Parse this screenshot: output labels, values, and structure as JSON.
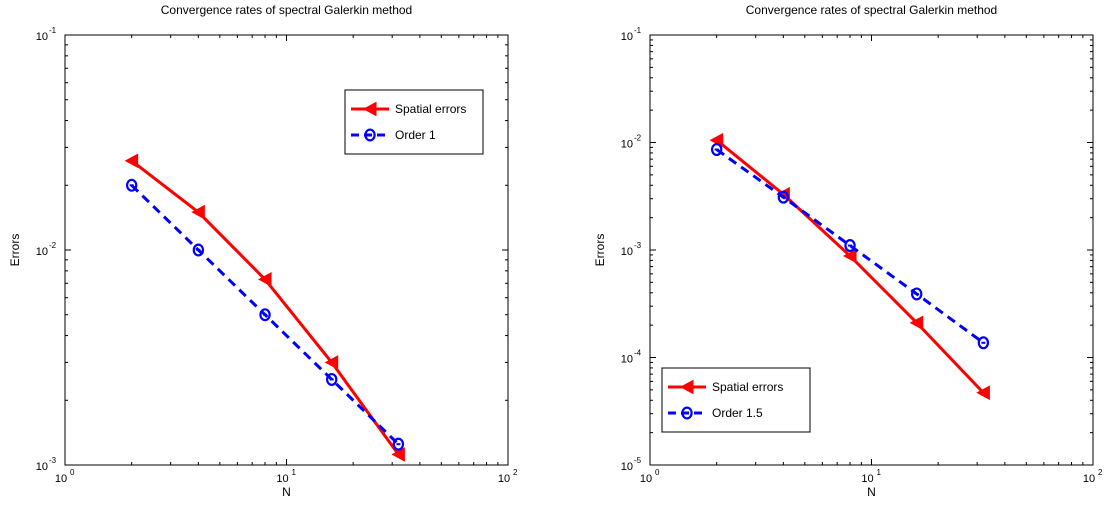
{
  "chart_data": [
    {
      "type": "line",
      "title": "Convergence rates of spectral Galerkin method",
      "xlabel": "N",
      "ylabel": "Errors",
      "xscale": "log",
      "yscale": "log",
      "xlim": [
        1,
        100
      ],
      "ylim": [
        0.001,
        0.1
      ],
      "x_ticks": [
        {
          "base": "10",
          "exp": "0"
        },
        {
          "base": "10",
          "exp": "1"
        },
        {
          "base": "10",
          "exp": "2"
        }
      ],
      "y_ticks": [
        {
          "base": "10",
          "exp": "-3"
        },
        {
          "base": "10",
          "exp": "-2"
        },
        {
          "base": "10",
          "exp": "-1"
        }
      ],
      "legend_position": "top-right",
      "series": [
        {
          "name": "Spatial errors",
          "color": "#ff0000",
          "line": "solid",
          "marker": "left-triangle",
          "x": [
            2,
            4,
            8,
            16,
            32
          ],
          "y": [
            0.026,
            0.015,
            0.0073,
            0.003,
            0.00112
          ]
        },
        {
          "name": "Order  1",
          "color": "#0000ff",
          "line": "dashed",
          "marker": "circle-dash",
          "x": [
            2,
            4,
            8,
            16,
            32
          ],
          "y": [
            0.02,
            0.01,
            0.005,
            0.0025,
            0.00125
          ]
        }
      ]
    },
    {
      "type": "line",
      "title": "Convergence rates of spectral Galerkin method",
      "xlabel": "N",
      "ylabel": "Errors",
      "xscale": "log",
      "yscale": "log",
      "xlim": [
        1,
        100
      ],
      "ylim": [
        1e-05,
        0.1
      ],
      "x_ticks": [
        {
          "base": "10",
          "exp": "0"
        },
        {
          "base": "10",
          "exp": "1"
        },
        {
          "base": "10",
          "exp": "2"
        }
      ],
      "y_ticks": [
        {
          "base": "10",
          "exp": "-5"
        },
        {
          "base": "10",
          "exp": "-4"
        },
        {
          "base": "10",
          "exp": "-3"
        },
        {
          "base": "10",
          "exp": "-2"
        },
        {
          "base": "10",
          "exp": "-1"
        }
      ],
      "legend_position": "bottom-left",
      "series": [
        {
          "name": "Spatial errors",
          "color": "#ff0000",
          "line": "solid",
          "marker": "left-triangle",
          "x": [
            2,
            4,
            8,
            16,
            32
          ],
          "y": [
            0.0105,
            0.0033,
            0.00088,
            0.00021,
            4.7e-05
          ]
        },
        {
          "name": "Order 1.5",
          "color": "#0000ff",
          "line": "dashed",
          "marker": "circle-dash",
          "x": [
            2,
            4,
            8,
            16,
            32
          ],
          "y": [
            0.0086,
            0.0031,
            0.0011,
            0.00039,
            0.000137
          ]
        }
      ]
    }
  ]
}
